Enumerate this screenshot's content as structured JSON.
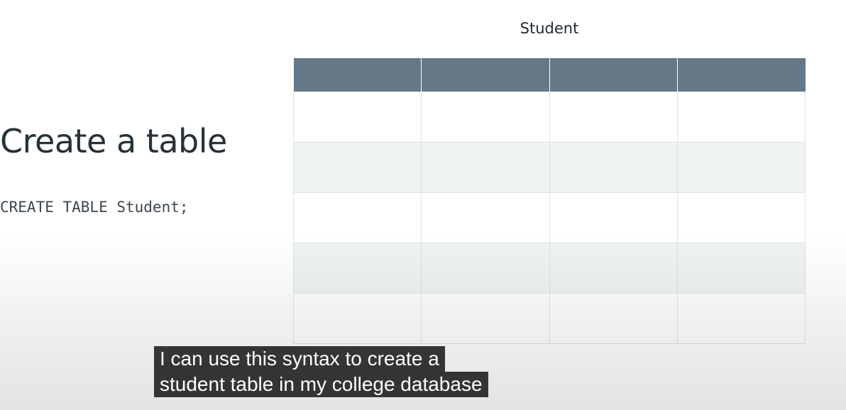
{
  "slide": {
    "heading": "Create a table",
    "code": "CREATE TABLE Student;"
  },
  "table": {
    "title": "Student",
    "columns": 4,
    "rows": 5
  },
  "caption": {
    "lines": [
      "I can use this syntax to create a",
      "student table in my college database"
    ]
  }
}
